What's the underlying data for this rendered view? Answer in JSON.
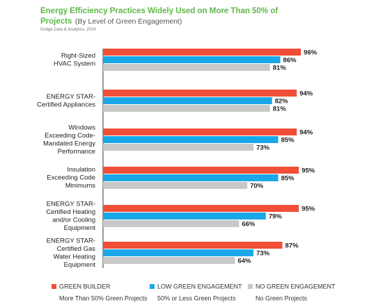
{
  "chart_data": {
    "type": "bar",
    "orientation": "horizontal",
    "title": "Energy Efficiency Practices Widely Used on More Than 50% of Projects",
    "subtitle": "(By Level of Green Engagement)",
    "source": "Dodge Data & Analytics, 2024",
    "categories": [
      [
        "Right-Sized",
        "HVAC System"
      ],
      [
        "ENERGY STAR-",
        "Certified Appliances"
      ],
      [
        "Windows",
        "Exceeding Code-",
        "Mandated Energy",
        "Performance"
      ],
      [
        "Insulation",
        "Exceeding Code",
        "Minimums"
      ],
      [
        "ENERGY STAR-",
        "Certified Heating",
        "and/or Cooling",
        "Equipment"
      ],
      [
        "ENERGY STAR-",
        "Certified Gas",
        "Water Heating",
        "Equipment"
      ]
    ],
    "series": [
      {
        "name": "GREEN BUILDER",
        "description": "More Than 50% Green Projects",
        "color": "#f04e37",
        "values": [
          96,
          94,
          94,
          95,
          95,
          87
        ],
        "value_labels": [
          "96%",
          "94%",
          "94%",
          "95%",
          "95%",
          "87%"
        ]
      },
      {
        "name": "LOW GREEN ENGAGEMENT",
        "description": "50% or Less Green Projects",
        "color": "#1aa7e8",
        "values": [
          86,
          82,
          85,
          85,
          79,
          73
        ],
        "value_labels": [
          "86%",
          "82%",
          "85%",
          "85%",
          "79%",
          "73%"
        ]
      },
      {
        "name": "NO GREEN ENGAGEMENT",
        "description": "No Green Projects",
        "color": "#c8c8c8",
        "values": [
          81,
          81,
          73,
          70,
          66,
          64
        ],
        "value_labels": [
          "81%",
          "81%",
          "73%",
          "70%",
          "66%",
          "64%"
        ]
      }
    ],
    "xlim": [
      0,
      100
    ]
  }
}
